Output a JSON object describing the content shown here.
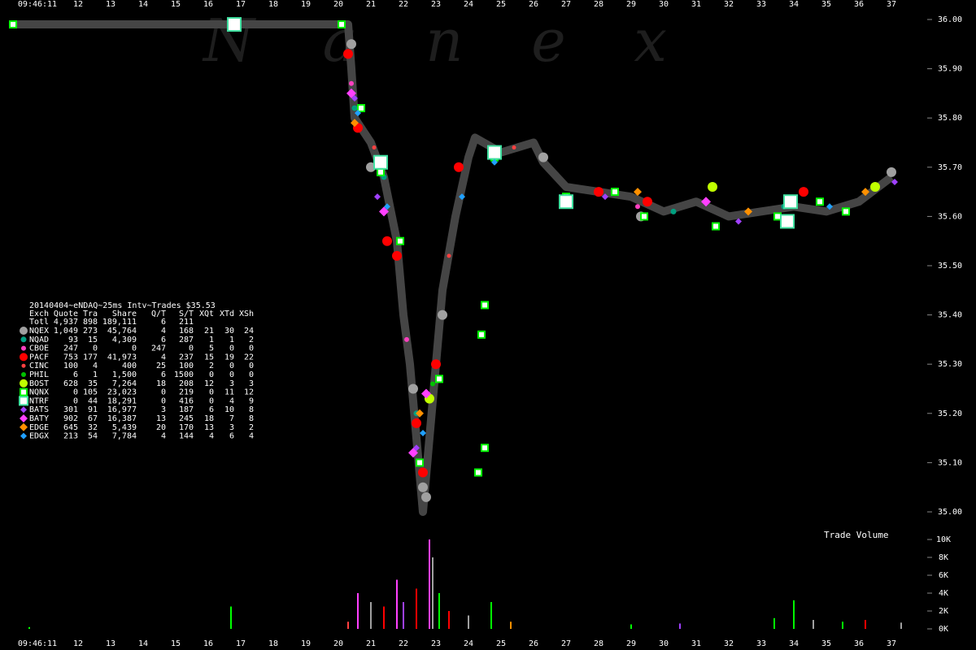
{
  "chart_data": [
    {
      "type": "scatter",
      "watermark": "N a n e x",
      "xlim": [
        9.6,
        38.1
      ],
      "ylim": [
        35.0,
        36.0
      ],
      "xticks": [
        {
          "value": 10.75,
          "label": "09:46:11"
        },
        12,
        13,
        14,
        15,
        16,
        17,
        18,
        19,
        20,
        21,
        22,
        23,
        24,
        25,
        26,
        27,
        28,
        29,
        30,
        31,
        32,
        33,
        34,
        35,
        36,
        37
      ],
      "yticks": [
        {
          "value": 35.0,
          "label": "35.00"
        },
        {
          "value": 35.1,
          "label": "35.10"
        },
        {
          "value": 35.2,
          "label": "35.20"
        },
        {
          "value": 35.3,
          "label": "35.30"
        },
        {
          "value": 35.4,
          "label": "35.40"
        },
        {
          "value": 35.5,
          "label": "35.50"
        },
        {
          "value": 35.6,
          "label": "35.60"
        },
        {
          "value": 35.7,
          "label": "35.70"
        },
        {
          "value": 35.8,
          "label": "35.80"
        },
        {
          "value": 35.9,
          "label": "35.90"
        },
        {
          "value": 36.0,
          "label": "36.00"
        }
      ],
      "spread": {
        "color": "#454545",
        "x": [
          10,
          20.3,
          20.4,
          20.5,
          21,
          21.4,
          21.8,
          22.0,
          22.2,
          22.4,
          22.6,
          22.8,
          23.0,
          23.2,
          23.6,
          24.0,
          24.2,
          25,
          26,
          26.3,
          27,
          28,
          29,
          30,
          31,
          32,
          33,
          34,
          35,
          36,
          37
        ],
        "values": [
          35.99,
          35.99,
          35.9,
          35.8,
          35.75,
          35.68,
          35.55,
          35.4,
          35.3,
          35.15,
          35.0,
          35.15,
          35.3,
          35.45,
          35.6,
          35.72,
          35.76,
          35.73,
          35.75,
          35.71,
          35.66,
          35.65,
          35.64,
          35.61,
          35.63,
          35.6,
          35.61,
          35.62,
          35.61,
          35.63,
          35.68
        ]
      },
      "legend": {
        "title": "20140404~eNDAQ~25ms Intv~Trades $35.53",
        "header": [
          "Exch",
          "Quote",
          "Tra",
          "Share",
          "Q/T",
          "S/T",
          "XQt",
          "XTd",
          "XSh"
        ],
        "total": [
          "Totl",
          "4,937",
          "898",
          "189,111",
          "6",
          "211"
        ]
      },
      "series": [
        {
          "name": "NQEX",
          "color": "#a0a0a0",
          "marker": "circle",
          "size": 6,
          "stats": [
            "1,049",
            "273",
            "45,764",
            "4",
            "168",
            "21",
            "30",
            "24"
          ],
          "x": [
            20.4,
            21.0,
            22.3,
            22.6,
            22.7,
            23.2,
            26.3,
            29.3,
            37.0
          ],
          "values": [
            35.95,
            35.7,
            35.25,
            35.05,
            35.03,
            35.4,
            35.72,
            35.6,
            35.69
          ]
        },
        {
          "name": "NQAD",
          "color": "#00a080",
          "marker": "circle",
          "size": 3.5,
          "stats": [
            "93",
            "15",
            "4,309",
            "6",
            "287",
            "1",
            "1",
            "2"
          ],
          "x": [
            20.5,
            21.4,
            22.4,
            30.3,
            33.7
          ],
          "values": [
            35.82,
            35.68,
            35.2,
            35.61,
            35.62
          ]
        },
        {
          "name": "CBOE",
          "color": "#ff40c0",
          "marker": "circle",
          "size": 3,
          "stats": [
            "247",
            "0",
            "0",
            "247",
            "0",
            "5",
            "0",
            "0"
          ],
          "x": [
            20.4,
            22.1,
            29.2
          ],
          "values": [
            35.87,
            35.35,
            35.62
          ]
        },
        {
          "name": "PACF",
          "color": "#ff0000",
          "marker": "circle",
          "size": 6,
          "stats": [
            "753",
            "177",
            "41,973",
            "4",
            "237",
            "15",
            "19",
            "22"
          ],
          "x": [
            20.3,
            20.6,
            21.5,
            21.8,
            22.4,
            22.6,
            23.0,
            23.7,
            28.0,
            29.5,
            34.3
          ],
          "values": [
            35.93,
            35.78,
            35.55,
            35.52,
            35.18,
            35.08,
            35.3,
            35.7,
            35.65,
            35.63,
            35.65
          ]
        },
        {
          "name": "CINC",
          "color": "#ff4040",
          "marker": "circle",
          "size": 2.5,
          "stats": [
            "100",
            "4",
            "400",
            "25",
            "100",
            "2",
            "0",
            "0"
          ],
          "x": [
            21.1,
            23.4,
            25.4
          ],
          "values": [
            35.74,
            35.52,
            35.74
          ]
        },
        {
          "name": "PHIL",
          "color": "#00c000",
          "marker": "circle",
          "size": 3,
          "stats": [
            "6",
            "1",
            "1,500",
            "6",
            "1500",
            "0",
            "0",
            "0"
          ],
          "x": [
            22.9
          ],
          "values": [
            35.26
          ]
        },
        {
          "name": "BOST",
          "color": "#c0ff00",
          "marker": "circle",
          "size": 6,
          "stats": [
            "628",
            "35",
            "7,264",
            "18",
            "208",
            "12",
            "3",
            "3"
          ],
          "x": [
            22.8,
            31.5,
            36.5
          ],
          "values": [
            35.23,
            35.66,
            35.66
          ]
        },
        {
          "name": "NQNX",
          "color": "#00ff00",
          "marker": "square",
          "size": 4,
          "stats": [
            "0",
            "105",
            "23,023",
            "0",
            "219",
            "0",
            "11",
            "12"
          ],
          "x": [
            10.0,
            16.7,
            20.1,
            20.7,
            21.3,
            21.9,
            22.5,
            23.1,
            24.4,
            24.5,
            24.5,
            24.3,
            24.8,
            27.0,
            28.5,
            29.4,
            31.6,
            33.5,
            34.8,
            35.6
          ],
          "values": [
            35.99,
            35.99,
            35.99,
            35.82,
            35.69,
            35.55,
            35.1,
            35.27,
            35.36,
            35.42,
            35.13,
            35.08,
            35.72,
            35.64,
            35.65,
            35.6,
            35.58,
            35.6,
            35.63,
            35.61
          ]
        },
        {
          "name": "NTRF",
          "color": "#40e0a0",
          "marker": "square",
          "size": 8,
          "stats": [
            "0",
            "44",
            "18,291",
            "0",
            "416",
            "0",
            "4",
            "9"
          ],
          "x": [
            16.8,
            21.3,
            24.8,
            27.0,
            33.8,
            33.9
          ],
          "values": [
            35.99,
            35.71,
            35.73,
            35.63,
            35.59,
            35.63
          ]
        },
        {
          "name": "BATS",
          "color": "#a040ff",
          "marker": "diamond",
          "size": 4,
          "stats": [
            "301",
            "91",
            "16,977",
            "3",
            "187",
            "6",
            "10",
            "8"
          ],
          "x": [
            20.5,
            21.2,
            22.4,
            28.2,
            32.3,
            37.1
          ],
          "values": [
            35.84,
            35.64,
            35.13,
            35.64,
            35.59,
            35.67
          ]
        },
        {
          "name": "BATY",
          "color": "#ff40ff",
          "marker": "diamond",
          "size": 6,
          "stats": [
            "902",
            "67",
            "16,387",
            "13",
            "245",
            "18",
            "7",
            "8"
          ],
          "x": [
            20.4,
            21.4,
            22.3,
            22.7,
            31.3
          ],
          "values": [
            35.85,
            35.61,
            35.12,
            35.24,
            35.63
          ]
        },
        {
          "name": "EDGE",
          "color": "#ff9000",
          "marker": "diamond",
          "size": 5,
          "stats": [
            "645",
            "32",
            "5,439",
            "20",
            "170",
            "13",
            "3",
            "2"
          ],
          "x": [
            20.5,
            22.5,
            29.2,
            32.6,
            36.2
          ],
          "values": [
            35.79,
            35.2,
            35.65,
            35.61,
            35.65
          ]
        },
        {
          "name": "EDGX",
          "color": "#20a0ff",
          "marker": "diamond",
          "size": 4,
          "stats": [
            "213",
            "54",
            "7,784",
            "4",
            "144",
            "4",
            "6",
            "4"
          ],
          "x": [
            20.6,
            21.5,
            22.6,
            23.8,
            24.8,
            35.1
          ],
          "values": [
            35.81,
            35.62,
            35.16,
            35.64,
            35.71,
            35.62
          ]
        }
      ]
    },
    {
      "type": "bar",
      "title": "Trade Volume",
      "xlim": [
        9.6,
        38.1
      ],
      "ylim": [
        0,
        10000
      ],
      "xticks": [
        {
          "value": 10.75,
          "label": "09:46:11"
        },
        12,
        13,
        14,
        15,
        16,
        17,
        18,
        19,
        20,
        21,
        22,
        23,
        24,
        25,
        26,
        27,
        28,
        29,
        30,
        31,
        32,
        33,
        34,
        35,
        36,
        37
      ],
      "yticks": [
        {
          "value": 0,
          "label": "0K"
        },
        {
          "value": 2000,
          "label": "2K"
        },
        {
          "value": 4000,
          "label": "4K"
        },
        {
          "value": 6000,
          "label": "6K"
        },
        {
          "value": 8000,
          "label": "8K"
        },
        {
          "value": 10000,
          "label": "10K"
        }
      ],
      "x": [
        10.5,
        16.7,
        20.3,
        20.6,
        21.0,
        21.4,
        21.8,
        22.0,
        22.4,
        22.8,
        22.9,
        23.1,
        23.4,
        24.0,
        24.7,
        25.3,
        29.0,
        30.5,
        33.4,
        34.0,
        34.6,
        35.5,
        36.2,
        37.3
      ],
      "values": [
        200,
        2500,
        800,
        4000,
        3000,
        2500,
        5500,
        3000,
        4500,
        10000,
        8000,
        4000,
        2000,
        1500,
        3000,
        800,
        500,
        600,
        1200,
        3200,
        1000,
        800,
        1000,
        700
      ],
      "colors": [
        "#00ff00",
        "#00ff00",
        "#ff4040",
        "#ff40ff",
        "#a0a0a0",
        "#ff0000",
        "#ff40ff",
        "#a040ff",
        "#ff0000",
        "#ff40ff",
        "#a0a0a0",
        "#00ff00",
        "#ff0000",
        "#a0a0a0",
        "#00ff00",
        "#ff9000",
        "#00ff00",
        "#a040ff",
        "#00ff00",
        "#00ff00",
        "#a0a0a0",
        "#00ff00",
        "#ff0000",
        "#a0a0a0"
      ]
    }
  ]
}
